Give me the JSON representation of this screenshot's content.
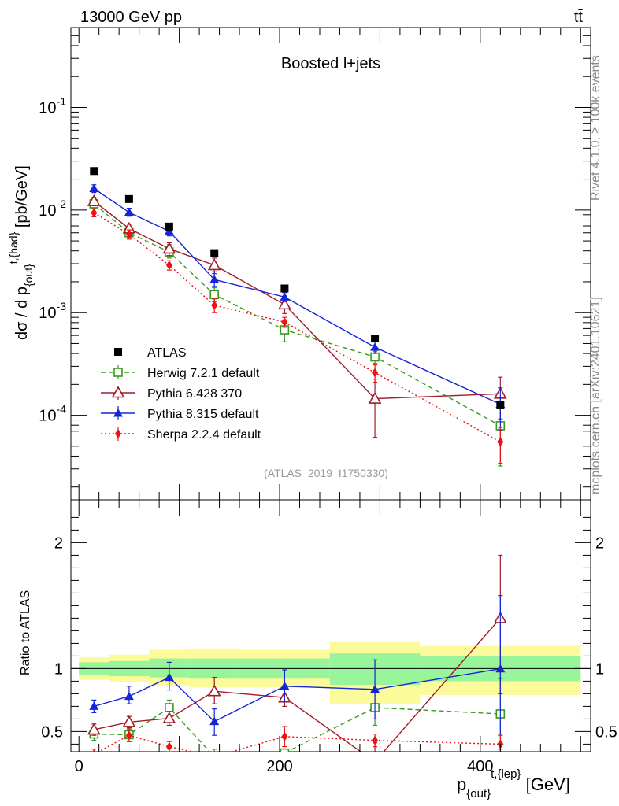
{
  "header": {
    "energy_label": "13000 GeV pp",
    "process_label": "tt̄",
    "side_label_top": "Rivet 4.1.0, ≥ 100k events",
    "side_label_bottom": "mcplots.cern.ch [arXiv:2401.10621]"
  },
  "chart_data": [
    {
      "type": "line",
      "panel": "main",
      "title": "Boosted l+jets",
      "watermark": "(ATLAS_2019_I1750330)",
      "ylabel": "dσ / d p_{out}^{t,{had}} [pb/GeV]",
      "yscale": "log",
      "ylim": [
        1.5e-05,
        0.6
      ],
      "xlim": [
        -8,
        510
      ],
      "y_ticks": [
        {
          "value": 0.1,
          "label": "10^-1"
        },
        {
          "value": 0.01,
          "label": "10^-2"
        },
        {
          "value": 0.001,
          "label": "10^-3"
        },
        {
          "value": 0.0001,
          "label": "10^-4"
        }
      ],
      "legend_position": "bottom-left",
      "series": [
        {
          "name": "ATLAS",
          "color": "#000000",
          "marker": "square",
          "line": "none",
          "x": [
            15,
            50,
            90,
            135,
            205,
            295,
            420
          ],
          "y": [
            0.024,
            0.0128,
            0.0069,
            0.0038,
            0.00172,
            0.00056,
            0.000125
          ]
        },
        {
          "name": "Herwig 7.2.1 default",
          "color": "#3a9a1a",
          "marker": "open-square",
          "line": "dashed",
          "x": [
            15,
            50,
            90,
            135,
            205,
            295,
            420
          ],
          "y": [
            0.0115,
            0.006,
            0.0039,
            0.0015,
            0.00068,
            0.00037,
            7.9e-05
          ],
          "err_lo": [
            0.0104,
            0.0054,
            0.0034,
            0.00128,
            0.00052,
            0.00032,
            3.2e-05
          ],
          "err_hi": [
            0.0127,
            0.0066,
            0.0046,
            0.00175,
            0.0008,
            0.00042,
            0.000125
          ]
        },
        {
          "name": "Pythia 6.428 370",
          "color": "#a01c2a",
          "marker": "open-triangle",
          "line": "solid",
          "x": [
            15,
            50,
            90,
            135,
            205,
            295,
            420
          ],
          "y": [
            0.0122,
            0.0066,
            0.0042,
            0.0029,
            0.0012,
            0.000145,
            0.000162
          ],
          "err_lo": [
            0.011,
            0.0059,
            0.0036,
            0.0024,
            0.00098,
            6.1e-05,
            9.2e-05
          ],
          "err_hi": [
            0.0133,
            0.0073,
            0.0048,
            0.0034,
            0.00145,
            0.000225,
            0.000235
          ]
        },
        {
          "name": "Pythia 8.315 default",
          "color": "#1425d8",
          "marker": "triangle",
          "line": "solid",
          "x": [
            15,
            50,
            90,
            135,
            205,
            295,
            420
          ],
          "y": [
            0.0162,
            0.0095,
            0.0062,
            0.0021,
            0.00142,
            0.00046,
            0.000128
          ],
          "err_lo": [
            0.0148,
            0.0087,
            0.0056,
            0.0018,
            0.00128,
            0.0004,
            7.2e-05
          ],
          "err_hi": [
            0.0176,
            0.0104,
            0.0069,
            0.0025,
            0.00157,
            0.00052,
            0.000185
          ]
        },
        {
          "name": "Sherpa 2.2.4 default",
          "color": "#ee1111",
          "marker": "diamond",
          "line": "dotted",
          "x": [
            15,
            50,
            90,
            135,
            205,
            295,
            420
          ],
          "y": [
            0.0094,
            0.0058,
            0.0029,
            0.00118,
            0.00081,
            0.00026,
            5.5e-05
          ],
          "err_lo": [
            0.0086,
            0.0052,
            0.0026,
            0.001,
            0.00072,
            0.00021,
            3.4e-05
          ],
          "err_hi": [
            0.0103,
            0.0064,
            0.0032,
            0.00136,
            0.0009,
            0.00031,
            7.6e-05
          ]
        }
      ]
    },
    {
      "type": "line",
      "panel": "ratio",
      "ylabel": "Ratio to ATLAS",
      "xlabel": "p_{out}^{t,{lep}} [GeV]",
      "ylim": [
        0.34,
        2.34
      ],
      "xlim": [
        -8,
        510
      ],
      "x_ticks": [
        0,
        200,
        400
      ],
      "y_ticks": [
        0.5,
        1,
        2
      ],
      "reference_line": 1,
      "bands": {
        "bins": [
          [
            0,
            30
          ],
          [
            30,
            70
          ],
          [
            70,
            110
          ],
          [
            110,
            160
          ],
          [
            160,
            250
          ],
          [
            250,
            340
          ],
          [
            340,
            500
          ]
        ],
        "inner_lo": [
          0.95,
          0.94,
          0.93,
          0.92,
          0.92,
          0.87,
          0.9
        ],
        "inner_hi": [
          1.05,
          1.06,
          1.08,
          1.08,
          1.08,
          1.12,
          1.1
        ],
        "outer_lo": [
          0.91,
          0.89,
          0.86,
          0.85,
          0.85,
          0.72,
          0.79
        ],
        "outer_hi": [
          1.09,
          1.11,
          1.15,
          1.16,
          1.15,
          1.21,
          1.18
        ],
        "inner_color": "#99f599",
        "outer_color": "#fbfb9b"
      },
      "series": [
        {
          "name": "Herwig 7.2.1 default",
          "color": "#3a9a1a",
          "marker": "open-square",
          "line": "dashed",
          "x": [
            15,
            50,
            90,
            135,
            205,
            295,
            420
          ],
          "y": [
            0.48,
            0.475,
            0.69,
            0.3,
            0.33,
            0.69,
            0.64
          ],
          "err_lo": [
            0.43,
            0.42,
            0.63,
            0.24,
            0.3,
            0.55,
            0.36
          ],
          "err_hi": [
            0.53,
            0.53,
            0.75,
            0.36,
            0.36,
            0.83,
            0.92
          ]
        },
        {
          "name": "Pythia 6.428 370",
          "color": "#a01c2a",
          "marker": "open-triangle",
          "line": "solid",
          "x": [
            15,
            50,
            90,
            135,
            205,
            295,
            420
          ],
          "y": [
            0.515,
            0.575,
            0.605,
            0.82,
            0.77,
            0.26,
            1.4
          ],
          "err_lo": [
            0.47,
            0.53,
            0.55,
            0.72,
            0.7,
            0.11,
            0.8
          ],
          "err_hi": [
            0.56,
            0.62,
            0.66,
            0.93,
            0.84,
            0.41,
            1.9
          ]
        },
        {
          "name": "Pythia 8.315 default",
          "color": "#1425d8",
          "marker": "triangle",
          "line": "solid",
          "x": [
            15,
            50,
            90,
            135,
            205,
            295,
            420
          ],
          "y": [
            0.7,
            0.78,
            0.93,
            0.58,
            0.86,
            0.835,
            0.998
          ],
          "err_lo": [
            0.65,
            0.72,
            0.83,
            0.47,
            0.74,
            0.6,
            0.48
          ],
          "err_hi": [
            0.75,
            0.86,
            1.05,
            0.68,
            0.99,
            1.07,
            1.58
          ]
        },
        {
          "name": "Sherpa 2.2.4 default",
          "color": "#ee1111",
          "marker": "diamond",
          "line": "dotted",
          "x": [
            15,
            50,
            90,
            135,
            205,
            295,
            420
          ],
          "y": [
            0.32,
            0.47,
            0.38,
            0.3,
            0.46,
            0.43,
            0.4
          ],
          "err_lo": [
            0.28,
            0.42,
            0.34,
            0.26,
            0.38,
            0.38,
            0.33
          ],
          "err_hi": [
            0.36,
            0.52,
            0.42,
            0.34,
            0.54,
            0.48,
            0.47
          ]
        }
      ]
    }
  ]
}
